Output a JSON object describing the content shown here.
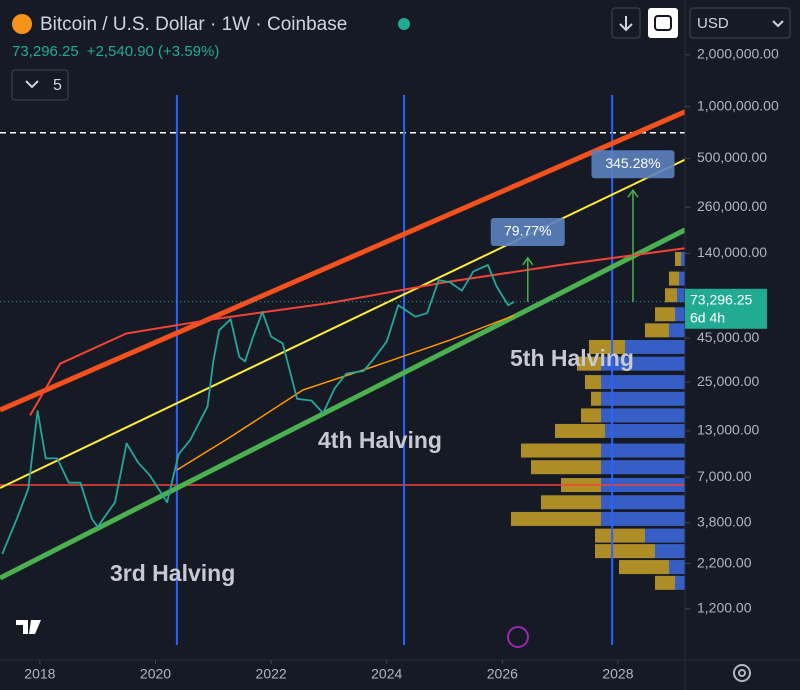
{
  "chart_data": {
    "type": "line",
    "title": "Bitcoin / U.S. Dollar · 1W · Coinbase",
    "price": {
      "value": 73296.25,
      "label": "73,296.25"
    },
    "change": "+2,540.90 (+3.59%)",
    "indicator_count": 5,
    "currency": "USD",
    "countdown": "6d 4h",
    "log_scale": true,
    "xlim": [
      2017.31,
      2029.16
    ],
    "xticks": [
      2018,
      2020,
      2022,
      2024,
      2026,
      2028
    ],
    "ylim": [
      605,
      2440000
    ],
    "yticks": [
      {
        "value": 2000000,
        "label": "2,000,000.00"
      },
      {
        "value": 1000000,
        "label": "1,000,000.00"
      },
      {
        "value": 500000,
        "label": "500,000.00"
      },
      {
        "value": 260000,
        "label": "260,000.00"
      },
      {
        "value": 140000,
        "label": "140,000.00"
      },
      {
        "value": 45000,
        "label": "45,000.00"
      },
      {
        "value": 25000,
        "label": "25,000.00"
      },
      {
        "value": 13000,
        "label": "13,000.00"
      },
      {
        "value": 7000,
        "label": "7,000.00"
      },
      {
        "value": 3800,
        "label": "3,800.00"
      },
      {
        "value": 2200,
        "label": "2,200.00"
      },
      {
        "value": 1200,
        "label": "1,200.00"
      }
    ],
    "series": [
      {
        "color": "#26a69a",
        "x": [
          2017.35,
          2017.6,
          2017.8,
          2017.96,
          2018.1,
          2018.3,
          2018.5,
          2018.7,
          2018.9,
          2019.0,
          2019.3,
          2019.5,
          2019.7,
          2019.9,
          2020.2,
          2020.4,
          2020.6,
          2020.9,
          2021.0,
          2021.1,
          2021.3,
          2021.45,
          2021.55,
          2021.7,
          2021.85,
          2022.0,
          2022.2,
          2022.45,
          2022.7,
          2022.9,
          2023.1,
          2023.3,
          2023.6,
          2023.8,
          2024.0,
          2024.2,
          2024.5,
          2024.7,
          2024.9,
          2025.1,
          2025.3,
          2025.5,
          2025.75,
          2025.9,
          2026.1,
          2026.2
        ],
        "values": [
          2500,
          4000,
          6000,
          17000,
          9000,
          9000,
          6500,
          6500,
          4000,
          3600,
          5000,
          11000,
          8500,
          7200,
          5000,
          9500,
          11500,
          18000,
          33000,
          50000,
          58000,
          35000,
          33000,
          47000,
          64000,
          46000,
          42000,
          20000,
          19500,
          16500,
          23000,
          28000,
          29000,
          35000,
          43000,
          70000,
          60000,
          63000,
          98000,
          95000,
          85000,
          110000,
          120000,
          90000,
          70000,
          73296.25
        ]
      }
    ],
    "overlays": [
      {
        "color": "#f4511e",
        "width": 5,
        "x": [
          2017.31,
          2029.16
        ],
        "values": [
          17200,
          933000
        ]
      },
      {
        "color": "#ffeb3b",
        "width": 2,
        "x": [
          2017.31,
          2029.16
        ],
        "values": [
          6050,
          491000
        ]
      },
      {
        "color": "#4caf50",
        "width": 5,
        "x": [
          2017.31,
          2029.16
        ],
        "values": [
          1815,
          192000
        ]
      },
      {
        "color": "#f44336",
        "width": 2,
        "x": [
          2017.83,
          2018.35,
          2019.5,
          2021.0,
          2023.0,
          2025.0,
          2027.0,
          2029.16
        ],
        "values": [
          16000,
          32000,
          48000,
          58000,
          72000,
          95000,
          120000,
          150000
        ]
      },
      {
        "color": "#ff9800",
        "width": 1.5,
        "x": [
          2020.37,
          2021.3,
          2022.55,
          2023.8,
          2025.1,
          2026.2
        ],
        "values": [
          7700,
          12000,
          22500,
          31000,
          44000,
          61000
        ]
      }
    ],
    "horizontal_lines": [
      {
        "value": 6300,
        "color": "#f44336",
        "style": "solid"
      },
      {
        "value": 705000,
        "color": "#ffffff",
        "style": "dashed"
      }
    ],
    "halvings": [
      {
        "x": 2020.37,
        "label": "3rd Halving"
      },
      {
        "x": 2024.3,
        "label": "4th Halving"
      },
      {
        "x": 2027.9,
        "label": "5th Halving"
      }
    ],
    "halving_color": "#2962ff",
    "measures": [
      {
        "x": 2026.44,
        "from": 73296.25,
        "to": 131762,
        "label": "79.77%"
      },
      {
        "x": 2028.26,
        "from": 73296.25,
        "to": 326364,
        "label": "345.28%"
      }
    ],
    "volume_profile": {
      "prices": [
        130000,
        100000,
        80000,
        62000,
        50000,
        40000,
        32000,
        25000,
        20000,
        16000,
        13000,
        10000,
        8000,
        6300,
        5000,
        4000,
        3200,
        2600,
        2100,
        1700
      ],
      "series": [
        {
          "color": "#3d6be0",
          "values": [
            2,
            3,
            4,
            5,
            8,
            30,
            42,
            42,
            42,
            42,
            40,
            42,
            42,
            42,
            42,
            42,
            20,
            15,
            8,
            5
          ]
        },
        {
          "color": "#c9a227",
          "values": [
            3,
            5,
            6,
            10,
            12,
            18,
            12,
            8,
            5,
            10,
            25,
            40,
            35,
            20,
            30,
            45,
            25,
            30,
            25,
            10
          ]
        }
      ]
    }
  }
}
